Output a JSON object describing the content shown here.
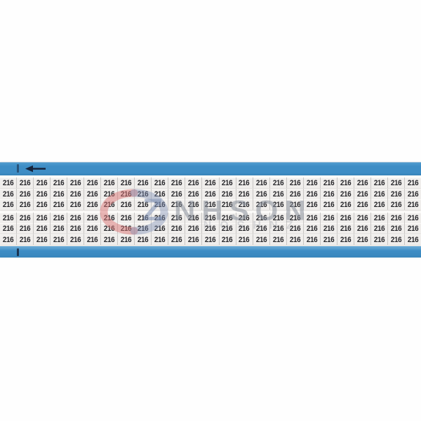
{
  "card": {
    "marker_value": "216",
    "rows": 6,
    "columns": 25,
    "group_break_after_row": 3,
    "colors": {
      "card_blue": "#3e8dc5",
      "paper": "#fbfaf8",
      "label_bg": "#f0eeec",
      "label_sep": "#c8c6c4",
      "label_text": "#27272b",
      "mark_dark": "#16243c"
    }
  },
  "icons": {
    "arrow": "arrow-left-icon",
    "logo": "znhson-ring-logo-icon"
  },
  "watermark": {
    "brand": "ZNHSON",
    "logo_letter": "Z",
    "brand_rest": "NHSON",
    "reflection_text": "ZNHSON",
    "colors": {
      "wm_gray": "#8a909c",
      "wm_blue": "#7e90b4",
      "wm_red": "#d97474"
    }
  }
}
